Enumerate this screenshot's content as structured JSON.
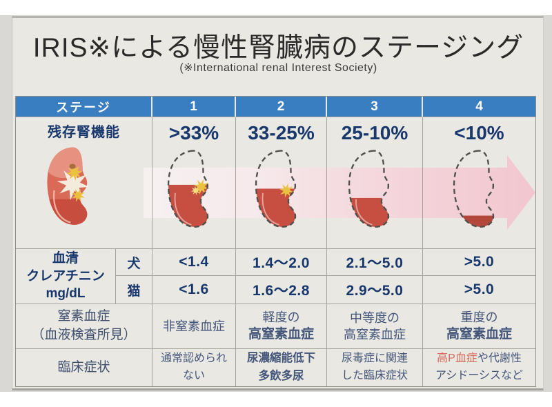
{
  "page": {
    "title": "IRIS※による慢性腎臓病のステージング",
    "subtitle": "(※International renal Interest Society)"
  },
  "colors": {
    "header_blue": "#3a7ec2",
    "value_navy": "#17376d",
    "label_blue_gray": "#3f4f6d",
    "page_bg": "#eae8e2",
    "grid_line": "#a5a49a",
    "arrow_pink": "#f2c6cf",
    "kidney_red": "#c64f42",
    "kidney_dark_red": "#b2473c",
    "star_yellow": "#eac23f",
    "highlight_red": "#d4685c"
  },
  "table": {
    "header": {
      "label": "ステージ",
      "stages": [
        "1",
        "2",
        "3",
        "4"
      ]
    },
    "renal_function": {
      "label": "残存腎機能",
      "values": [
        ">33%",
        "33-25%",
        "25-10%",
        "<10%"
      ]
    },
    "creatinine": {
      "label_line1": "血清",
      "label_line2": "クレアチニン",
      "label_line3": "mg/dL",
      "dog": {
        "species": "犬",
        "values": [
          "<1.4",
          "1.4〜2.0",
          "2.1〜5.0",
          ">5.0"
        ]
      },
      "cat": {
        "species": "猫",
        "values": [
          "<1.6",
          "1.6〜2.8",
          "2.9〜5.0",
          ">5.0"
        ]
      }
    },
    "azotemia": {
      "label_line1": "窒素血症",
      "label_line2": "（血液検査所見）",
      "cells": [
        {
          "line1": "非窒素血症",
          "line2": ""
        },
        {
          "line1": "軽度の",
          "line2": "高窒素血症"
        },
        {
          "line1": "中等度の",
          "line2": "高窒素血症"
        },
        {
          "line1": "重度の",
          "line2": "高窒素血症"
        }
      ]
    },
    "clinical": {
      "label": "臨床症状",
      "cells": [
        {
          "line1": "通常認められ",
          "line2": "ない"
        },
        {
          "line1": "尿濃縮能低下",
          "line2": "多飲多尿"
        },
        {
          "line1": "尿毒症に関連",
          "line2": "した臨床症状"
        },
        {
          "line1_red": "高P血症",
          "line1_rest": "や代謝性",
          "line2": "アシドーシスなど"
        }
      ]
    }
  },
  "illustration": {
    "healthy_kidney_label": "healthy-kidney",
    "kidney_fill_percent": [
      55,
      50,
      38,
      15
    ],
    "arrow_direction": "right"
  }
}
